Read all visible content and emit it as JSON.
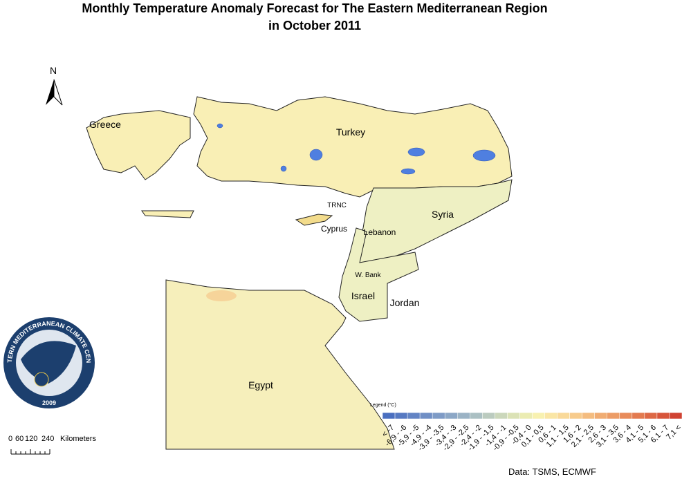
{
  "title": [
    "Monthly Temperature Anomaly Forecast for  The Eastern Mediterranean Region",
    "in October 2011"
  ],
  "north": "N",
  "places": [
    "Greece",
    "Turkey",
    "TRNC",
    "Cyprus",
    "Syria",
    "Lebanon",
    "W. Bank",
    "Israel",
    "Jordan",
    "Egypt"
  ],
  "legend": {
    "title": "Legend (°C)",
    "classes": [
      {
        "label": "< -7",
        "color": "#4a6fc0"
      },
      {
        "label": "-6,9 - -6",
        "color": "#5679c2"
      },
      {
        "label": "-5,9 - -5",
        "color": "#6384c4"
      },
      {
        "label": "-4,9 - -4",
        "color": "#708fc5"
      },
      {
        "label": "-3,9 - -3,5",
        "color": "#7e9bc6"
      },
      {
        "label": "-3,4 - -3",
        "color": "#8ca7c6"
      },
      {
        "label": "-2,9 - -2,5",
        "color": "#9bb3c5"
      },
      {
        "label": "-2,4 - -2",
        "color": "#abc0c3"
      },
      {
        "label": "-1,9 - -1,5",
        "color": "#bbcbbf"
      },
      {
        "label": "-1,4 - -1",
        "color": "#cbd7bb"
      },
      {
        "label": "-0,9 - -0,5",
        "color": "#dbe2b6"
      },
      {
        "label": "-0,4 - 0",
        "color": "#ebecb2"
      },
      {
        "label": "0,1 - 0,5",
        "color": "#f8f1b0"
      },
      {
        "label": "0,6 - 1",
        "color": "#fae6a5"
      },
      {
        "label": "1,1 - 1,5",
        "color": "#f9d999"
      },
      {
        "label": "1,6 - 2",
        "color": "#f7cb8c"
      },
      {
        "label": "2,1 - 2,5",
        "color": "#f4bc7f"
      },
      {
        "label": "2,6 - 3",
        "color": "#f0ac72"
      },
      {
        "label": "3,1 - 3,5",
        "color": "#ec9c66"
      },
      {
        "label": "3,6 - 4",
        "color": "#e88b5a"
      },
      {
        "label": "4,1 - 5",
        "color": "#e37a4f"
      },
      {
        "label": "5,1 - 6",
        "color": "#dd6845"
      },
      {
        "label": "6,1 - 7",
        "color": "#d7553b"
      },
      {
        "label": "7,1 <",
        "color": "#d04232"
      }
    ]
  },
  "scale": {
    "ticks": [
      "0",
      "60",
      "120",
      "240"
    ],
    "unit": "Kilometers"
  },
  "logo": {
    "name": "EASTERN MEDITERRANEAN CLIMATE CENTRE",
    "year": "2009"
  },
  "source": "Data:  TSMS, ECMWF"
}
